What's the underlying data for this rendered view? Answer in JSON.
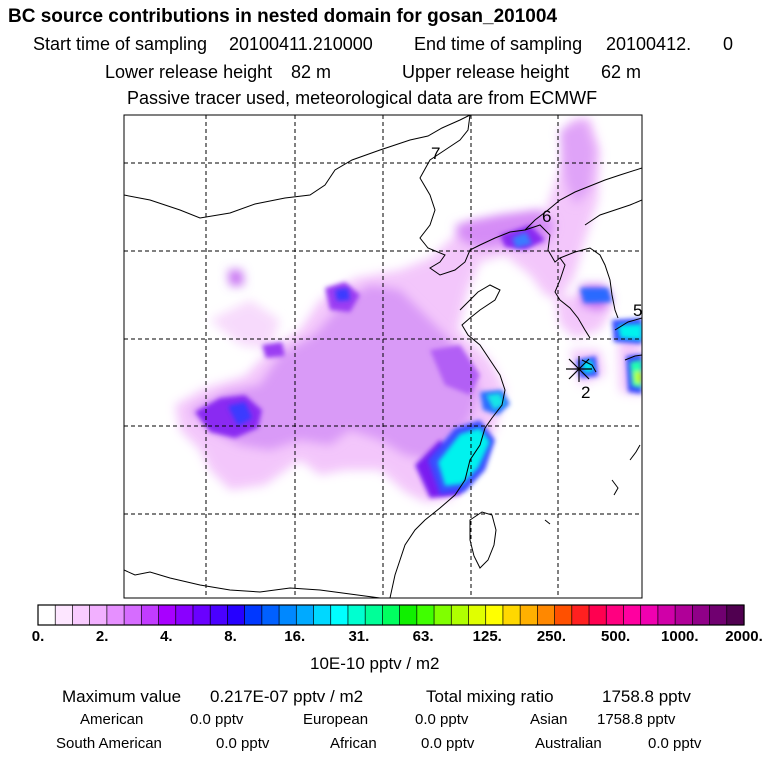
{
  "title": "BC  source contributions in nested domain for gosan_201004",
  "header": {
    "start_label": "Start time of sampling",
    "start_value": "20100411.210000",
    "end_label": "End time of sampling",
    "end_value": "20100412.",
    "end_suffix": "0",
    "lower_label": "Lower release height",
    "lower_value": "82 m",
    "upper_label": "Upper release height",
    "upper_value": "62 m",
    "tracer_note": "Passive tracer used, meteorological data are from ECMWF"
  },
  "map": {
    "region_labels": [
      "7",
      "6",
      "5",
      "2"
    ],
    "receptor_symbol": "gosan-receptor-star"
  },
  "colorbar": {
    "ticks": [
      "0.",
      "2.",
      "4.",
      "8.",
      "16.",
      "31.",
      "63.",
      "125.",
      "250.",
      "500.",
      "1000.",
      "2000."
    ],
    "colors": [
      "#ffffff",
      "#fde6ff",
      "#f9ccff",
      "#f2b0ff",
      "#e690ff",
      "#d66cff",
      "#c23cff",
      "#a800ff",
      "#8a00ff",
      "#6a00ff",
      "#4a00ff",
      "#2600ff",
      "#0038ff",
      "#0060ff",
      "#0088ff",
      "#00aaff",
      "#00d8ff",
      "#00ffff",
      "#00ffd0",
      "#00ff98",
      "#00ff60",
      "#10f000",
      "#40ff00",
      "#80ff00",
      "#b0ff00",
      "#e0ff00",
      "#ffff00",
      "#ffd800",
      "#ffb000",
      "#ff8800",
      "#ff5000",
      "#ff2020",
      "#ff0050",
      "#ff0080",
      "#ff00a0",
      "#f000b0",
      "#d000a8",
      "#b00098",
      "#900088",
      "#700070",
      "#500050"
    ],
    "unit": "10E-10 pptv / m2"
  },
  "footer": {
    "max_label": "Maximum value",
    "max_value": "0.217E-07 pptv / m2",
    "total_label": "Total mixing ratio",
    "total_value": "1758.8 pptv",
    "contributions": [
      {
        "name": "American",
        "value": "0.0 pptv"
      },
      {
        "name": "European",
        "value": "0.0 pptv"
      },
      {
        "name": "Asian",
        "value": "1758.8 pptv"
      },
      {
        "name": "South American",
        "value": "0.0 pptv"
      },
      {
        "name": "African",
        "value": "0.0 pptv"
      },
      {
        "name": "Australian",
        "value": "0.0 pptv"
      }
    ]
  }
}
